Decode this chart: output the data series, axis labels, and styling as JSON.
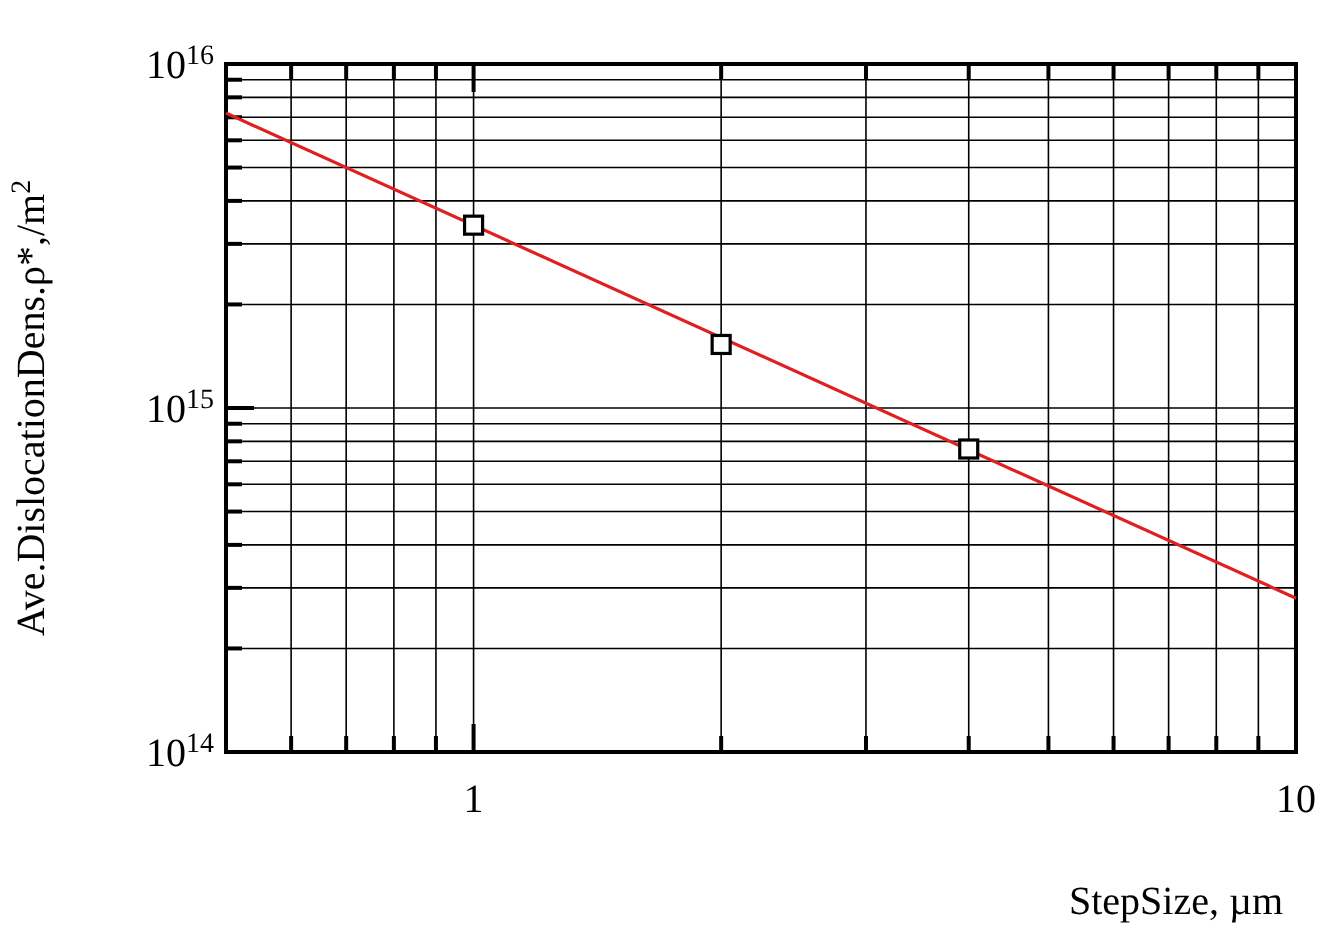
{
  "chart_data": {
    "type": "scatter",
    "xlabel": "StepSize, µm",
    "ylabel": "Ave.DislocationDens.ρ*,/m$^{2}$",
    "log": "xy",
    "grid": true,
    "xlim": [
      0.5,
      10
    ],
    "ylim": [
      100000000000000.0,
      1e+16
    ],
    "xticks": [
      {
        "value": 0.5,
        "label": null
      },
      {
        "value": 0.6,
        "label": null
      },
      {
        "value": 0.7,
        "label": null
      },
      {
        "value": 0.8,
        "label": null
      },
      {
        "value": 0.9,
        "label": null
      },
      {
        "value": 1,
        "label": "1"
      },
      {
        "value": 2,
        "label": null
      },
      {
        "value": 3,
        "label": null
      },
      {
        "value": 4,
        "label": null
      },
      {
        "value": 5,
        "label": null
      },
      {
        "value": 6,
        "label": null
      },
      {
        "value": 7,
        "label": null
      },
      {
        "value": 8,
        "label": null
      },
      {
        "value": 9,
        "label": null
      },
      {
        "value": 10,
        "label": "10"
      }
    ],
    "yticks": [
      {
        "value": 100000000000000.0,
        "label": "10$^{14}$"
      },
      {
        "value": 200000000000000.0,
        "label": null
      },
      {
        "value": 300000000000000.0,
        "label": null
      },
      {
        "value": 400000000000000.0,
        "label": null
      },
      {
        "value": 500000000000000.0,
        "label": null
      },
      {
        "value": 600000000000000.0,
        "label": null
      },
      {
        "value": 700000000000000.0,
        "label": null
      },
      {
        "value": 800000000000000.0,
        "label": null
      },
      {
        "value": 900000000000000.0,
        "label": null
      },
      {
        "value": 1000000000000000.0,
        "label": "10$^{15}$"
      },
      {
        "value": 2000000000000000.0,
        "label": null
      },
      {
        "value": 3000000000000000.0,
        "label": null
      },
      {
        "value": 4000000000000000.0,
        "label": null
      },
      {
        "value": 5000000000000000.0,
        "label": null
      },
      {
        "value": 6000000000000000.0,
        "label": null
      },
      {
        "value": 7000000000000000.0,
        "label": null
      },
      {
        "value": 8000000000000000.0,
        "label": null
      },
      {
        "value": 9000000000000000.0,
        "label": null
      },
      {
        "value": 1e+16,
        "label": "10$^{16}$"
      }
    ],
    "series": [
      {
        "type": "line",
        "color": "#e02020",
        "marker": "none",
        "line_style": "solid",
        "x": [
          0.5,
          10
        ],
        "values": [
          7200000000000000.0,
          280000000000000.0
        ]
      },
      {
        "color": "#000000",
        "marker": "square",
        "x": [
          1,
          2,
          4
        ],
        "values": [
          3400000000000000.0,
          1530000000000000.0,
          760000000000000.0
        ]
      }
    ]
  }
}
